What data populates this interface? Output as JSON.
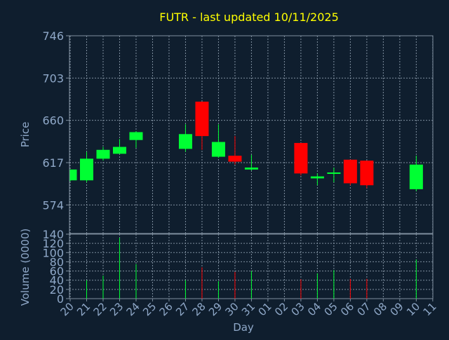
{
  "colors": {
    "background": "#0f1e2e",
    "plot_border": "#7f8f9f",
    "grid": "#7f8f9f",
    "axis_text": "#8fa8c8",
    "title": "#ffff00",
    "up": "#00ff33",
    "down": "#ff0000"
  },
  "chart_data": [
    {
      "type": "candlestick",
      "title": "FUTR - last updated 10/11/2025",
      "xlabel": "Day",
      "ylabel": "Price",
      "grid": true,
      "ylim": [
        545,
        746
      ],
      "yticks": [
        574,
        617,
        660,
        703,
        746
      ],
      "categories": [
        "20",
        "21",
        "22",
        "23",
        "24",
        "25",
        "26",
        "27",
        "28",
        "29",
        "30",
        "31",
        "01",
        "02",
        "03",
        "04",
        "05",
        "06",
        "07",
        "08",
        "09",
        "10",
        "11"
      ],
      "candles": [
        {
          "day": "20",
          "open": 599,
          "close": 610,
          "high": 610,
          "low": 598
        },
        {
          "day": "21",
          "open": 599,
          "close": 621,
          "high": 628,
          "low": 597
        },
        {
          "day": "22",
          "open": 621,
          "close": 630,
          "high": 633,
          "low": 619
        },
        {
          "day": "23",
          "open": 626,
          "close": 633,
          "high": 641,
          "low": 626
        },
        {
          "day": "24",
          "open": 640,
          "close": 648,
          "high": 649,
          "low": 632
        },
        {
          "day": "27",
          "open": 631,
          "close": 646,
          "high": 656,
          "low": 628
        },
        {
          "day": "28",
          "open": 679,
          "close": 644,
          "high": 679,
          "low": 630
        },
        {
          "day": "29",
          "open": 623,
          "close": 638,
          "high": 656,
          "low": 622
        },
        {
          "day": "30",
          "open": 624,
          "close": 618,
          "high": 644,
          "low": 615
        },
        {
          "day": "31",
          "open": 610,
          "close": 612,
          "high": 625,
          "low": 609
        },
        {
          "day": "03",
          "open": 637,
          "close": 606,
          "high": 637,
          "low": 604
        },
        {
          "day": "04",
          "open": 601,
          "close": 603,
          "high": 606,
          "low": 594
        },
        {
          "day": "05",
          "open": 606,
          "close": 607,
          "high": 612,
          "low": 597
        },
        {
          "day": "06",
          "open": 620,
          "close": 596,
          "high": 620,
          "low": 594
        },
        {
          "day": "07",
          "open": 619,
          "close": 594,
          "high": 619,
          "low": 591
        },
        {
          "day": "10",
          "open": 590,
          "close": 615,
          "high": 624,
          "low": 588
        }
      ]
    },
    {
      "type": "bar",
      "xlabel": "Day",
      "ylabel": "Volume (0000)",
      "ylim": [
        0,
        140
      ],
      "yticks": [
        0,
        20,
        40,
        60,
        80,
        100,
        120,
        140
      ],
      "bars": [
        {
          "day": "21",
          "value": 40,
          "direction": "up"
        },
        {
          "day": "22",
          "value": 50,
          "direction": "up"
        },
        {
          "day": "23",
          "value": 132,
          "direction": "up"
        },
        {
          "day": "24",
          "value": 75,
          "direction": "up"
        },
        {
          "day": "27",
          "value": 40,
          "direction": "up"
        },
        {
          "day": "28",
          "value": 68,
          "direction": "down"
        },
        {
          "day": "29",
          "value": 38,
          "direction": "up"
        },
        {
          "day": "30",
          "value": 58,
          "direction": "down"
        },
        {
          "day": "31",
          "value": 60,
          "direction": "up"
        },
        {
          "day": "03",
          "value": 42,
          "direction": "down"
        },
        {
          "day": "04",
          "value": 55,
          "direction": "up"
        },
        {
          "day": "05",
          "value": 62,
          "direction": "up"
        },
        {
          "day": "06",
          "value": 43,
          "direction": "down"
        },
        {
          "day": "07",
          "value": 43,
          "direction": "down"
        },
        {
          "day": "10",
          "value": 85,
          "direction": "up"
        }
      ]
    }
  ]
}
